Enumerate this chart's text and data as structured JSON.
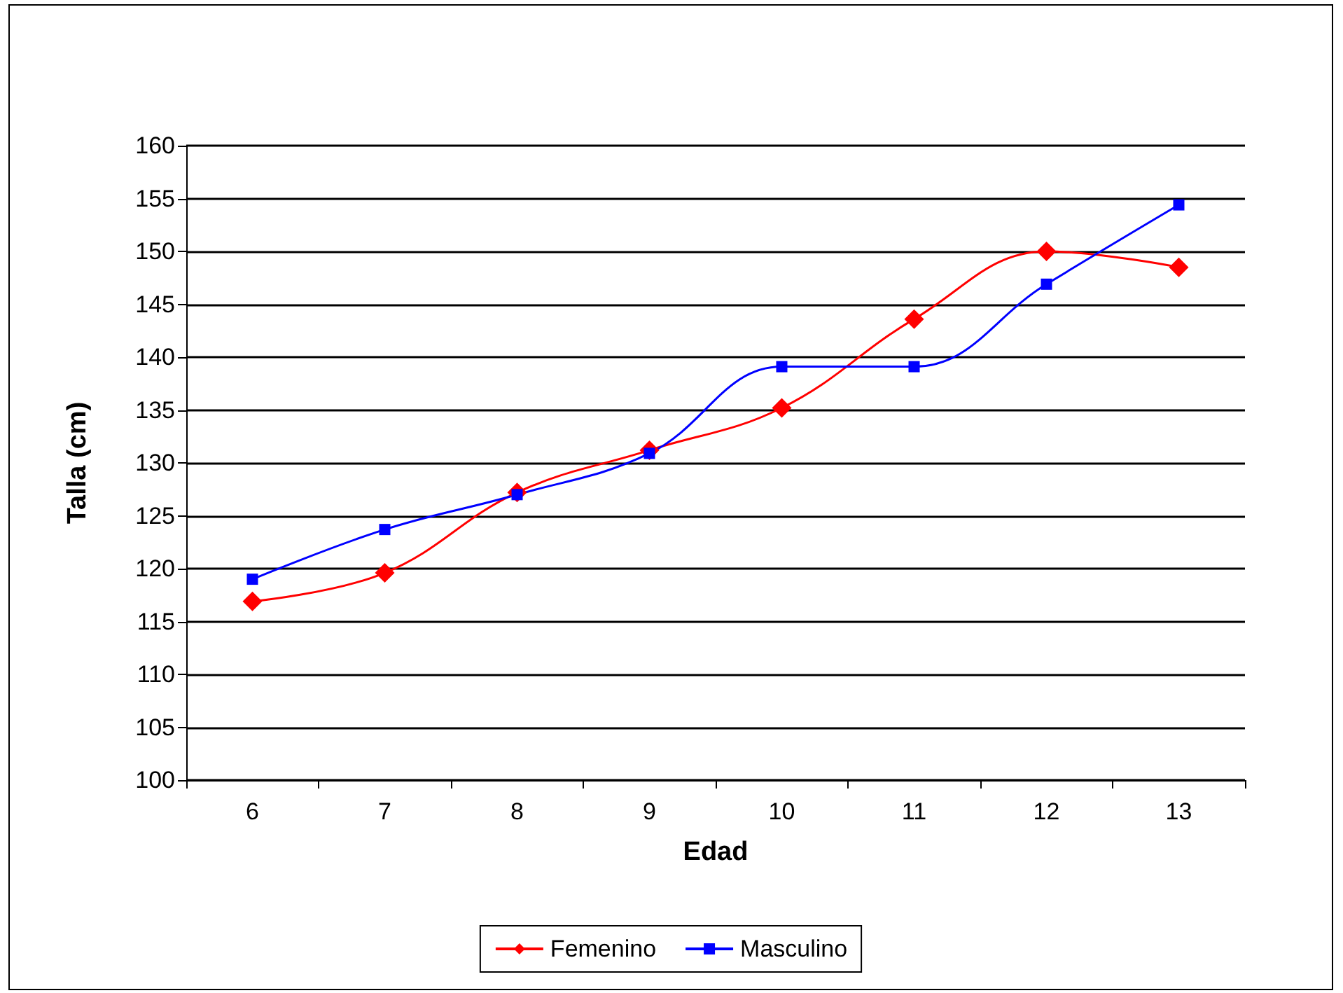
{
  "chart_data": {
    "type": "line",
    "xlabel": "Edad",
    "ylabel": "Talla (cm)",
    "categories": [
      "6",
      "7",
      "8",
      "9",
      "10",
      "11",
      "12",
      "13"
    ],
    "series": [
      {
        "name": "Femenino",
        "color": "#ff0000",
        "marker": "diamond",
        "values": [
          116.9,
          119.6,
          127.2,
          131.2,
          135.2,
          143.6,
          150,
          148.5
        ]
      },
      {
        "name": "Masculino",
        "color": "#0000ff",
        "marker": "square",
        "values": [
          119,
          123.7,
          127,
          130.9,
          139.1,
          139.1,
          146.9,
          154.4
        ]
      }
    ],
    "ylim": [
      100,
      160
    ],
    "yticks": [
      100,
      105,
      110,
      115,
      120,
      125,
      130,
      135,
      140,
      145,
      150,
      155,
      160
    ],
    "grid": "y",
    "legend": "bottom"
  }
}
